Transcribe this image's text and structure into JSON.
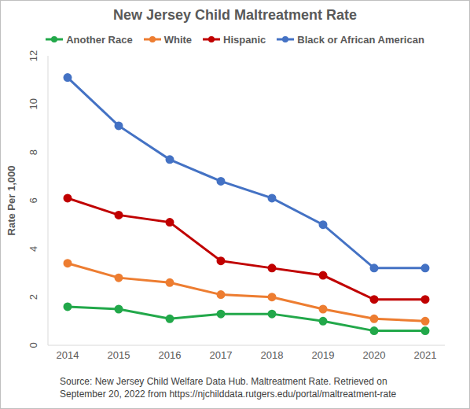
{
  "chart_data": {
    "type": "line",
    "title": "New Jersey Child Maltreatment Rate",
    "y_label": "Rate Per 1,000",
    "source": "Source: New Jersey Child Welfare Data Hub. Maltreatment Rate. Retrieved on September 20, 2022 from https://njchilddata.rutgers.edu/portal/maltreatment-rate",
    "categories": [
      "2014",
      "2015",
      "2016",
      "2017",
      "2018",
      "2019",
      "2020",
      "2021"
    ],
    "series": [
      {
        "name": "Another Race",
        "color": "#22a84a",
        "marker": "circle",
        "values": [
          1.6,
          1.5,
          1.1,
          1.3,
          1.3,
          1.0,
          0.6,
          0.6
        ]
      },
      {
        "name": "White",
        "color": "#ed7d31",
        "marker": "circle",
        "values": [
          3.4,
          2.8,
          2.6,
          2.1,
          2.0,
          1.5,
          1.1,
          1.0
        ]
      },
      {
        "name": "Hispanic",
        "color": "#c00000",
        "marker": "circle",
        "values": [
          6.1,
          5.4,
          5.1,
          3.5,
          3.2,
          2.9,
          1.9,
          1.9
        ]
      },
      {
        "name": "Black or African American",
        "color": "#4472c4",
        "marker": "circle",
        "values": [
          11.1,
          9.1,
          7.7,
          6.8,
          6.1,
          5.0,
          3.2,
          3.2
        ]
      }
    ],
    "ylim": [
      0,
      12
    ],
    "yticks": [
      0,
      2,
      4,
      6,
      8,
      10,
      12
    ],
    "grid": false,
    "legend": "top"
  }
}
